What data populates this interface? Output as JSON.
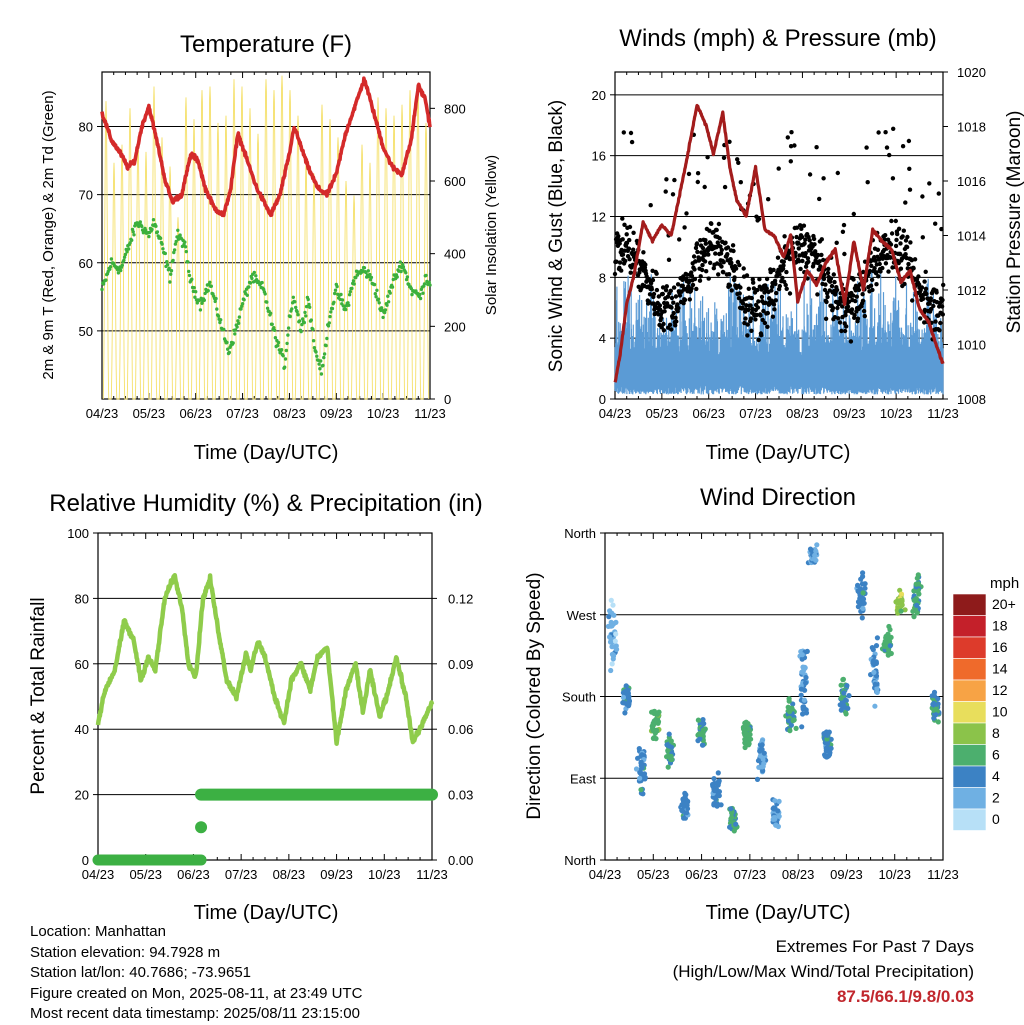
{
  "colors": {
    "temp_red": "#d42a2a",
    "dewpoint_green": "#3cb03c",
    "solar_yellow": "#f5e06a",
    "pressure_maroon": "#a31c1c",
    "sonic_blue": "#5b9bd5",
    "gust_black": "#000000",
    "rh_green": "#8fcc4b",
    "precip_green": "#3cb043",
    "extremes_red": "#c1272d"
  },
  "x_ticks": [
    "04/23",
    "05/23",
    "06/23",
    "07/23",
    "08/23",
    "09/23",
    "10/23",
    "11/23"
  ],
  "info": {
    "location": "Location: Manhattan",
    "elevation": "Station elevation: 94.7928 m",
    "latlon": "Station lat/lon: 40.7686; -73.9651",
    "created": "Figure created on Mon, 2025-08-11, at 23:49 UTC",
    "recent": "Most recent data timestamp: 2025/08/11 23:15:00"
  },
  "extremes": {
    "line1": "Extremes For Past 7 Days",
    "line2": "(High/Low/Max Wind/Total Precipitation)",
    "value": "87.5/66.1/9.8/0.03"
  },
  "chart_data": [
    {
      "type": "line",
      "title": "Temperature (F)",
      "xlabel": "Time (Day/UTC)",
      "ylabel": "2m & 9m T (Red, Orange) & 2m Td (Green)",
      "ylabel_right": "Solar Insolation (Yellow)",
      "x_range": [
        "04/23",
        "11/23"
      ],
      "ylim": [
        40,
        88
      ],
      "ylim_right": [
        0,
        900
      ],
      "yticks": [
        50,
        60,
        70,
        80
      ],
      "yticks_right": [
        0,
        200,
        400,
        600,
        800
      ],
      "grid": true,
      "series": [
        {
          "name": "2m T",
          "x": [
            0,
            0.2,
            0.4,
            0.55,
            0.7,
            0.85,
            1,
            1.2,
            1.35,
            1.5,
            1.7,
            1.9,
            2.05,
            2.2,
            2.4,
            2.6,
            2.75,
            2.9,
            3.1,
            3.3,
            3.45,
            3.6,
            3.8,
            4.0,
            4.1,
            4.25,
            4.4,
            4.6,
            4.8,
            5.0,
            5.2,
            5.4,
            5.6,
            5.8,
            6.0,
            6.2,
            6.4,
            6.6,
            6.75,
            6.9,
            7.0
          ],
          "values": [
            82,
            78,
            76,
            74,
            75,
            80,
            83,
            77,
            72,
            69,
            70,
            76,
            75,
            71,
            68,
            67,
            71,
            79,
            75,
            71,
            69,
            67,
            70,
            76,
            80,
            77,
            74,
            71,
            70,
            73,
            79,
            83,
            87,
            82,
            77,
            74,
            73,
            78,
            86,
            84,
            80
          ]
        },
        {
          "name": "2m Td",
          "x": [
            0,
            0.2,
            0.4,
            0.6,
            0.75,
            0.9,
            1,
            1.1,
            1.2,
            1.3,
            1.45,
            1.6,
            1.75,
            1.9,
            2.1,
            2.3,
            2.5,
            2.7,
            2.85,
            3.0,
            3.2,
            3.45,
            3.7,
            3.9,
            4.0,
            4.1,
            4.25,
            4.4,
            4.55,
            4.7,
            4.85,
            5.0,
            5.2,
            5.4,
            5.6,
            5.8,
            6.0,
            6.2,
            6.4,
            6.6,
            6.8,
            6.9,
            7.0
          ],
          "values": [
            56,
            60,
            59,
            63,
            66,
            65,
            64,
            66,
            64,
            62,
            58,
            64,
            63,
            57,
            54,
            57,
            52,
            47,
            50,
            54,
            58,
            56,
            49,
            45,
            52,
            55,
            50,
            55,
            47,
            44,
            52,
            56,
            53,
            58,
            59,
            57,
            52,
            57,
            60,
            56,
            55,
            58,
            57
          ]
        },
        {
          "name": "Solar Insolation",
          "axis": "right",
          "daily_peaks": [
            820,
            650,
            700,
            800,
            720,
            680,
            860,
            720,
            640,
            500,
            830,
            770,
            850,
            860,
            760,
            780,
            880,
            860,
            800,
            730,
            880,
            850,
            890,
            850,
            780,
            650,
            620,
            810,
            770,
            720,
            600,
            560,
            700,
            650,
            830,
            800,
            780,
            810,
            850,
            870,
            760
          ]
        }
      ]
    },
    {
      "type": "line",
      "title": "Winds (mph) & Pressure (mb)",
      "xlabel": "Time (Day/UTC)",
      "ylabel": "Sonic Wind & Gust (Blue, Black)",
      "ylabel_right": "Station Pressure (Maroon)",
      "x_range": [
        "04/23",
        "11/23"
      ],
      "ylim": [
        0,
        21.5
      ],
      "ylim_right": [
        1008,
        1020
      ],
      "yticks": [
        0,
        4,
        8,
        12,
        16,
        20
      ],
      "yticks_right": [
        1008,
        1010,
        1012,
        1014,
        1016,
        1018,
        1020
      ],
      "grid": true,
      "series": [
        {
          "name": "Station Pressure",
          "axis": "right",
          "x": [
            0,
            0.1,
            0.25,
            0.4,
            0.6,
            0.8,
            1.0,
            1.2,
            1.5,
            1.75,
            1.95,
            2.1,
            2.3,
            2.45,
            2.6,
            2.8,
            3.0,
            3.2,
            3.4,
            3.6,
            3.75,
            3.9,
            4.1,
            4.3,
            4.5,
            4.7,
            4.9,
            5.1,
            5.3,
            5.5,
            5.7,
            5.9,
            6.1,
            6.3,
            6.5,
            6.7,
            6.85,
            7.0
          ],
          "values": [
            1008.6,
            1009.5,
            1011.5,
            1012.5,
            1014.5,
            1013.8,
            1014.4,
            1014.0,
            1016.5,
            1018.8,
            1018.0,
            1017.0,
            1018.5,
            1016.5,
            1015.3,
            1014.7,
            1016.5,
            1014.2,
            1014.0,
            1013.2,
            1014.0,
            1011.6,
            1012.7,
            1012.2,
            1013.0,
            1013.5,
            1011.5,
            1013.8,
            1012.0,
            1014.2,
            1013.8,
            1013.5,
            1012.3,
            1012.7,
            1011.3,
            1010.8,
            1010.0,
            1009.3
          ]
        },
        {
          "name": "Sonic Wind",
          "typical_range": [
            0.5,
            8
          ]
        },
        {
          "name": "Gust",
          "typical_range": [
            4,
            19.5
          ]
        }
      ]
    },
    {
      "type": "line",
      "title": "Relative Humidity (%) & Precipitation (in)",
      "xlabel": "Time (Day/UTC)",
      "ylabel": "Percent & Total Rainfall",
      "x_range": [
        "04/23",
        "11/23"
      ],
      "ylim": [
        0,
        100
      ],
      "ylim_right": [
        0.0,
        0.15
      ],
      "yticks": [
        0,
        20,
        40,
        60,
        80,
        100
      ],
      "yticks_right": [
        "0.00",
        "0.03",
        "0.06",
        "0.09",
        "0.12"
      ],
      "grid": true,
      "series": [
        {
          "name": "Relative Humidity",
          "x": [
            0,
            0.15,
            0.35,
            0.55,
            0.75,
            0.9,
            1.05,
            1.2,
            1.4,
            1.6,
            1.75,
            1.9,
            2.05,
            2.2,
            2.35,
            2.5,
            2.7,
            2.9,
            3.1,
            3.2,
            3.35,
            3.5,
            3.7,
            3.9,
            4.05,
            4.25,
            4.45,
            4.6,
            4.8,
            5.0,
            5.2,
            5.4,
            5.55,
            5.7,
            5.9,
            6.05,
            6.25,
            6.45,
            6.6,
            6.75,
            6.9,
            7.0
          ],
          "values": [
            42,
            52,
            58,
            73,
            67,
            55,
            62,
            58,
            80,
            87,
            78,
            60,
            56,
            80,
            86,
            72,
            55,
            50,
            63,
            58,
            67,
            62,
            50,
            42,
            55,
            60,
            52,
            62,
            65,
            36,
            52,
            60,
            45,
            58,
            44,
            50,
            62,
            50,
            36,
            40,
            45,
            48
          ]
        },
        {
          "name": "Total Precipitation",
          "axis": "right",
          "x": [
            0,
            1.0,
            2.0,
            2.15,
            2.16,
            3.0,
            4.0,
            5.0,
            6.0,
            7.0
          ],
          "values": [
            0.0,
            0.0,
            0.0,
            0.0,
            0.03,
            0.03,
            0.03,
            0.03,
            0.03,
            0.03
          ]
        }
      ]
    },
    {
      "type": "scatter",
      "title": "Wind Direction",
      "xlabel": "Time (Day/UTC)",
      "ylabel": "Direction (Colored By Speed)",
      "x_range": [
        "04/23",
        "11/23"
      ],
      "ylim": [
        0,
        360
      ],
      "yticks": [
        "North",
        "East",
        "South",
        "West",
        "North"
      ],
      "ytick_values": [
        0,
        90,
        180,
        270,
        360
      ],
      "grid": true,
      "colorbar": {
        "title": "mph",
        "labels": [
          "20+",
          "18",
          "16",
          "14",
          "12",
          "10",
          "8",
          "6",
          "4",
          "2",
          "0"
        ],
        "colors": [
          "#8e1b1b",
          "#c4202a",
          "#dd3b2b",
          "#ef6a2b",
          "#f7a345",
          "#e8de5c",
          "#8bc34a",
          "#4caf6e",
          "#3c82c4",
          "#6fb0e3",
          "#b7e0f7"
        ]
      },
      "clusters": [
        {
          "x": 0.15,
          "center": 250,
          "spread": 90,
          "speed": 2
        },
        {
          "x": 0.45,
          "center": 180,
          "spread": 40,
          "speed": 4
        },
        {
          "x": 0.75,
          "center": 100,
          "spread": 60,
          "speed": 4
        },
        {
          "x": 1.05,
          "center": 150,
          "spread": 40,
          "speed": 6
        },
        {
          "x": 1.35,
          "center": 120,
          "spread": 40,
          "speed": 5
        },
        {
          "x": 1.65,
          "center": 60,
          "spread": 40,
          "speed": 4
        },
        {
          "x": 2.0,
          "center": 140,
          "spread": 40,
          "speed": 5
        },
        {
          "x": 2.3,
          "center": 75,
          "spread": 40,
          "speed": 4
        },
        {
          "x": 2.65,
          "center": 45,
          "spread": 35,
          "speed": 5
        },
        {
          "x": 2.95,
          "center": 140,
          "spread": 45,
          "speed": 6
        },
        {
          "x": 3.25,
          "center": 110,
          "spread": 55,
          "speed": 3
        },
        {
          "x": 3.55,
          "center": 50,
          "spread": 40,
          "speed": 3
        },
        {
          "x": 3.85,
          "center": 160,
          "spread": 40,
          "speed": 5
        },
        {
          "x": 4.1,
          "center": 200,
          "spread": 120,
          "speed": 3
        },
        {
          "x": 4.3,
          "center": 335,
          "spread": 25,
          "speed": 3
        },
        {
          "x": 4.6,
          "center": 130,
          "spread": 40,
          "speed": 4
        },
        {
          "x": 4.95,
          "center": 180,
          "spread": 60,
          "speed": 5
        },
        {
          "x": 5.3,
          "center": 290,
          "spread": 50,
          "speed": 4
        },
        {
          "x": 5.6,
          "center": 210,
          "spread": 80,
          "speed": 3
        },
        {
          "x": 5.85,
          "center": 240,
          "spread": 40,
          "speed": 6
        },
        {
          "x": 6.1,
          "center": 285,
          "spread": 30,
          "speed": 8
        },
        {
          "x": 6.45,
          "center": 290,
          "spread": 70,
          "speed": 5
        },
        {
          "x": 6.85,
          "center": 170,
          "spread": 40,
          "speed": 5
        }
      ]
    }
  ]
}
